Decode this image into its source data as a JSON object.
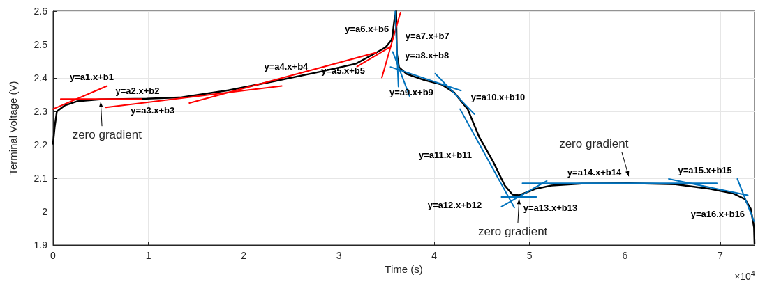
{
  "chart_data": {
    "type": "line",
    "xlabel": "Time (s)",
    "ylabel": "Terminal Voltage (V)",
    "xlim": [
      0,
      7.36
    ],
    "xticks": [
      0,
      1,
      2,
      3,
      4,
      5,
      6,
      7
    ],
    "ylim": [
      1.9,
      2.6
    ],
    "yticks": [
      1.9,
      2,
      2.1,
      2.2,
      2.3,
      2.4,
      2.5,
      2.6
    ],
    "grid": true,
    "marker": "none",
    "line_style": "solid",
    "series": [
      {
        "color": "#000000",
        "x": [
          0,
          0.017,
          0.04,
          0.125,
          0.25,
          0.49,
          0.98,
          1.35,
          1.84,
          2.32,
          2.81,
          3.18,
          3.38,
          3.49,
          3.55,
          3.56,
          3.58,
          3.6,
          3.607,
          3.63,
          3.71,
          3.89,
          4.08,
          4.21,
          4.35,
          4.47,
          4.62,
          4.74,
          4.82,
          4.89,
          4.91,
          5.06,
          5.23,
          5.55,
          6.04,
          6.53,
          6.89,
          7.14,
          7.26,
          7.32,
          7.355,
          7.36
        ],
        "values": [
          2.203,
          2.253,
          2.3,
          2.318,
          2.33,
          2.336,
          2.338,
          2.342,
          2.363,
          2.39,
          2.419,
          2.443,
          2.474,
          2.492,
          2.513,
          2.523,
          2.571,
          2.6,
          2.474,
          2.432,
          2.412,
          2.394,
          2.38,
          2.356,
          2.307,
          2.224,
          2.148,
          2.078,
          2.051,
          2.049,
          2.051,
          2.068,
          2.078,
          2.084,
          2.085,
          2.082,
          2.068,
          2.054,
          2.037,
          2.009,
          1.953,
          1.905
        ]
      },
      {
        "name": "y=a1.x+b1",
        "color": "#ff0000",
        "x": [
          0,
          0.567
        ],
        "values": [
          2.307,
          2.376
        ]
      },
      {
        "name": "y=a2.x+b2",
        "color": "#ff0000",
        "x": [
          0.08,
          0.93
        ],
        "values": [
          2.337,
          2.337
        ]
      },
      {
        "name": "y=a3.x+b3",
        "color": "#ff0000",
        "x": [
          0.555,
          2.4
        ],
        "values": [
          2.312,
          2.376
        ]
      },
      {
        "name": "y=a4.x+b4",
        "color": "#ff0000",
        "x": [
          1.43,
          3.39
        ],
        "values": [
          2.325,
          2.476
        ]
      },
      {
        "name": "y=a5.x+b5",
        "color": "#ff0000",
        "x": [
          3.19,
          3.55
        ],
        "values": [
          2.434,
          2.495
        ]
      },
      {
        "name": "y=a6.x+b6",
        "color": "#ff0000",
        "x": [
          3.45,
          3.645
        ],
        "values": [
          2.401,
          2.596
        ]
      },
      {
        "name": "y=a7.x+b7",
        "color": "#0072bd",
        "x": [
          3.59,
          3.624
        ],
        "values": [
          2.599,
          2.374
        ]
      },
      {
        "name": "y=a8.x+b8",
        "color": "#0072bd",
        "x": [
          3.565,
          3.74
        ],
        "values": [
          2.478,
          2.346
        ]
      },
      {
        "name": "y=a9.x+b9",
        "color": "#0072bd",
        "x": [
          3.54,
          4.28
        ],
        "values": [
          2.433,
          2.362
        ]
      },
      {
        "name": "y=a10.x+b10",
        "color": "#0072bd",
        "x": [
          4.01,
          4.42
        ],
        "values": [
          2.413,
          2.292
        ]
      },
      {
        "name": "y=a11.x+b11",
        "color": "#0072bd",
        "x": [
          4.27,
          4.84
        ],
        "values": [
          2.307,
          2.012
        ]
      },
      {
        "name": "y=a12.x+b12",
        "color": "#0072bd",
        "x": [
          4.705,
          5.07
        ],
        "values": [
          2.044,
          2.044
        ]
      },
      {
        "name": "y=a13.x+b13",
        "color": "#0072bd",
        "x": [
          4.705,
          5.18
        ],
        "values": [
          2.015,
          2.092
        ]
      },
      {
        "name": "y=a14.x+b14",
        "color": "#0072bd",
        "x": [
          4.925,
          6.965
        ],
        "values": [
          2.085,
          2.085
        ]
      },
      {
        "name": "y=a15.x+b15",
        "color": "#0072bd",
        "x": [
          6.46,
          7.29
        ],
        "values": [
          2.098,
          2.049
        ]
      },
      {
        "name": "y=a16.x+b16",
        "color": "#0072bd",
        "x": [
          7.18,
          7.355
        ],
        "values": [
          2.098,
          1.971
        ]
      }
    ],
    "annotations": [
      {
        "text": "zero gradient",
        "x": 0.5,
        "y": 2.335
      },
      {
        "text": "zero gradient",
        "x": 4.89,
        "y": 2.044
      },
      {
        "text": "zero gradient",
        "x": 6.04,
        "y": 2.085
      },
      "×10$^{4}$"
    ]
  }
}
